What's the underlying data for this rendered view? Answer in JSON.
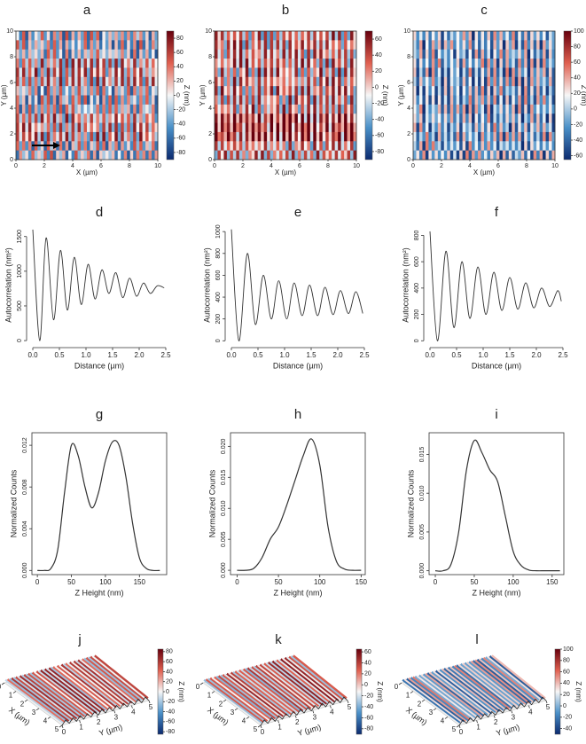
{
  "chart_data": [
    {
      "type": "heatmap",
      "label": "a",
      "xlabel": "X (µm)",
      "ylabel": "Y (µm)",
      "zlabel": "Z (nm)",
      "xlim": [
        0,
        10
      ],
      "ylim": [
        0,
        10
      ],
      "xticks": [
        0,
        2,
        4,
        6,
        8,
        10
      ],
      "yticks": [
        0,
        2,
        4,
        6,
        8,
        10
      ],
      "zlim": [
        -90,
        90
      ],
      "zticks": [
        80,
        60,
        40,
        20,
        0,
        -20,
        -40,
        -60,
        -80
      ],
      "colors": [
        "#0b2a6f",
        "#4a90c8",
        "#f7f7f7",
        "#e06050",
        "#67000d"
      ]
    },
    {
      "type": "heatmap",
      "label": "b",
      "xlabel": "X (µm)",
      "ylabel": "Y (µm)",
      "zlabel": "Z (nm)",
      "xlim": [
        0,
        10
      ],
      "ylim": [
        0,
        10
      ],
      "xticks": [
        0,
        2,
        4,
        6,
        8,
        10
      ],
      "yticks": [
        0,
        2,
        4,
        6,
        8,
        10
      ],
      "zlim": [
        -90,
        70
      ],
      "zticks": [
        60,
        40,
        20,
        0,
        -20,
        -40,
        -60,
        -80
      ],
      "colors": [
        "#0b2a6f",
        "#4a90c8",
        "#f7f7f7",
        "#e06050",
        "#67000d"
      ]
    },
    {
      "type": "heatmap",
      "label": "c",
      "xlabel": "X (µm)",
      "ylabel": "Y (µm)",
      "zlabel": "Z (nm)",
      "xlim": [
        0,
        10
      ],
      "ylim": [
        0,
        10
      ],
      "xticks": [
        0,
        2,
        4,
        6,
        8,
        10
      ],
      "yticks": [
        0,
        2,
        4,
        6,
        8,
        10
      ],
      "zlim": [
        -65,
        100
      ],
      "zticks": [
        100,
        80,
        60,
        40,
        20,
        0,
        -20,
        -40,
        -60
      ],
      "colors": [
        "#0b2a6f",
        "#4a90c8",
        "#f7f7f7",
        "#e06050",
        "#67000d"
      ]
    },
    {
      "type": "line",
      "label": "d",
      "xlabel": "Distance  (µm)",
      "ylabel": "Autocorrelation (nm²)",
      "xlim": [
        -0.05,
        2.55
      ],
      "ylim": [
        -50,
        1650
      ],
      "xticks": [
        {
          "value": 0,
          "label": "0.0"
        },
        0.5,
        {
          "value": 1,
          "label": "1.0"
        },
        1.5,
        {
          "value": 2,
          "label": "2.0"
        },
        2.5
      ],
      "yticks": [
        0,
        500,
        1000,
        1500
      ],
      "color": "#333333",
      "x": [
        0,
        0.13,
        0.25,
        0.39,
        0.52,
        0.65,
        0.78,
        0.91,
        1.04,
        1.17,
        1.3,
        1.43,
        1.56,
        1.69,
        1.82,
        1.95,
        2.08,
        2.21,
        2.34,
        2.47
      ],
      "values": [
        1600,
        0,
        1480,
        300,
        1300,
        440,
        1200,
        520,
        1100,
        600,
        1020,
        680,
        980,
        620,
        900,
        640,
        830,
        680,
        790,
        760
      ]
    },
    {
      "type": "line",
      "label": "e",
      "xlabel": "Distance  (µm)",
      "ylabel": "Autocorrelation (nm²)",
      "xlim": [
        -0.05,
        2.55
      ],
      "ylim": [
        -30,
        1050
      ],
      "xticks": [
        {
          "value": 0,
          "label": "0.0"
        },
        0.5,
        {
          "value": 1,
          "label": "1.0"
        },
        1.5,
        {
          "value": 2,
          "label": "2.0"
        },
        2.5
      ],
      "yticks": [
        0,
        200,
        400,
        600,
        800,
        1000
      ],
      "color": "#333333",
      "x": [
        0,
        0.14,
        0.3,
        0.45,
        0.6,
        0.75,
        0.89,
        1.04,
        1.18,
        1.33,
        1.47,
        1.62,
        1.76,
        1.91,
        2.05,
        2.2,
        2.34,
        2.47
      ],
      "values": [
        1020,
        0,
        800,
        150,
        600,
        200,
        550,
        200,
        530,
        230,
        510,
        230,
        490,
        240,
        460,
        250,
        450,
        250
      ]
    },
    {
      "type": "line",
      "label": "f",
      "xlabel": "Distance  (µm)",
      "ylabel": "Autocorrelation (nm²)",
      "xlim": [
        -0.05,
        2.55
      ],
      "ylim": [
        -25,
        870
      ],
      "xticks": [
        {
          "value": 0,
          "label": "0.0"
        },
        0.5,
        {
          "value": 1,
          "label": "1.0"
        },
        1.5,
        {
          "value": 2,
          "label": "2.0"
        },
        2.5
      ],
      "yticks": [
        0,
        200,
        400,
        600,
        800
      ],
      "color": "#333333",
      "x": [
        0,
        0.14,
        0.3,
        0.45,
        0.6,
        0.75,
        0.9,
        1.05,
        1.2,
        1.35,
        1.5,
        1.65,
        1.8,
        1.95,
        2.1,
        2.25,
        2.4,
        2.47
      ],
      "values": [
        830,
        0,
        680,
        100,
        600,
        170,
        560,
        200,
        520,
        230,
        480,
        240,
        440,
        250,
        400,
        260,
        380,
        300
      ]
    },
    {
      "type": "hist",
      "label": "g",
      "xlabel": "Z Height (nm)",
      "ylabel": "Normalized Counts",
      "xlim": [
        -8,
        190
      ],
      "ylim": [
        -0.0004,
        0.0132
      ],
      "xticks": [
        0,
        50,
        100,
        150
      ],
      "yticks": [
        {
          "value": 0,
          "label": "0.000"
        },
        0.004,
        0.008,
        0.012
      ],
      "color": "#333333",
      "x": [
        0,
        10,
        20,
        30,
        40,
        50,
        60,
        70,
        80,
        90,
        100,
        110,
        120,
        130,
        140,
        150,
        160,
        170,
        180
      ],
      "values": [
        0,
        0,
        0.0002,
        0.002,
        0.0075,
        0.012,
        0.011,
        0.008,
        0.006,
        0.0075,
        0.0105,
        0.0123,
        0.012,
        0.009,
        0.0045,
        0.0012,
        0.0002,
        0,
        0
      ]
    },
    {
      "type": "hist",
      "label": "h",
      "xlabel": "Z Height (nm)",
      "ylabel": "Normalized Counts",
      "xlim": [
        -8,
        155
      ],
      "ylim": [
        -0.0007,
        0.0222
      ],
      "xticks": [
        0,
        50,
        100,
        150
      ],
      "yticks": [
        {
          "value": 0,
          "label": "0.000"
        },
        0.005,
        {
          "value": 0.01,
          "label": "0.010"
        },
        0.015,
        {
          "value": 0.02,
          "label": "0.020"
        }
      ],
      "color": "#333333",
      "x": [
        0,
        10,
        20,
        30,
        40,
        50,
        60,
        70,
        80,
        90,
        100,
        110,
        120,
        130,
        140,
        150
      ],
      "values": [
        0,
        0,
        0.0003,
        0.002,
        0.005,
        0.007,
        0.0105,
        0.0145,
        0.0185,
        0.0212,
        0.017,
        0.007,
        0.0015,
        0.0002,
        0,
        0
      ]
    },
    {
      "type": "hist",
      "label": "i",
      "xlabel": "Z Height (nm)",
      "ylabel": "Normalized Counts",
      "xlim": [
        -8,
        165
      ],
      "ylim": [
        -0.0005,
        0.0178
      ],
      "xticks": [
        0,
        50,
        100,
        150
      ],
      "yticks": [
        {
          "value": 0,
          "label": "0.000"
        },
        0.005,
        {
          "value": 0.01,
          "label": "0.010"
        },
        0.015
      ],
      "color": "#333333",
      "x": [
        0,
        10,
        20,
        30,
        40,
        50,
        60,
        70,
        80,
        90,
        100,
        110,
        120,
        130,
        140,
        150,
        160
      ],
      "values": [
        0,
        0,
        0.0008,
        0.005,
        0.013,
        0.0168,
        0.0152,
        0.013,
        0.0115,
        0.007,
        0.0025,
        0.0007,
        0.0001,
        0,
        0,
        0,
        0
      ]
    },
    {
      "type": "surface",
      "label": "j",
      "xlabel": "X (µm)",
      "ylabel": "Y (µm)",
      "zlabel": "Z (nm)",
      "xlim": [
        0,
        5
      ],
      "ylim": [
        0,
        5
      ],
      "xticks": [
        0,
        1,
        2,
        3,
        4,
        5
      ],
      "yticks": [
        0,
        1,
        2,
        3,
        4,
        5
      ],
      "zlim": [
        -85,
        85
      ],
      "zticks": [
        80,
        60,
        40,
        20,
        0,
        -20,
        -40,
        -60,
        -80
      ],
      "colors": [
        "#0b2a6f",
        "#4a90c8",
        "#f7f7f7",
        "#e06050",
        "#67000d"
      ]
    },
    {
      "type": "surface",
      "label": "k",
      "xlabel": "X (µm)",
      "ylabel": "Y (µm)",
      "zlabel": "Z (nm)",
      "xlim": [
        0,
        5
      ],
      "ylim": [
        0,
        5
      ],
      "xticks": [
        0,
        1,
        2,
        3,
        4,
        5
      ],
      "yticks": [
        0,
        1,
        2,
        3,
        4,
        5
      ],
      "zlim": [
        -90,
        65
      ],
      "zticks": [
        60,
        40,
        20,
        0,
        -20,
        -40,
        -60,
        -80
      ],
      "colors": [
        "#0b2a6f",
        "#4a90c8",
        "#f7f7f7",
        "#e06050",
        "#67000d"
      ]
    },
    {
      "type": "surface",
      "label": "l",
      "xlabel": "X (µm)",
      "ylabel": "Y (µm)",
      "zlabel": "Z (nm)",
      "xlim": [
        0,
        5
      ],
      "ylim": [
        0,
        5
      ],
      "xticks": [
        0,
        1,
        2,
        3,
        4,
        5
      ],
      "yticks": [
        0,
        1,
        2,
        3,
        4,
        5
      ],
      "zlim": [
        -50,
        100
      ],
      "zticks": [
        100,
        80,
        60,
        40,
        20,
        0,
        -20,
        -40
      ],
      "colors": [
        "#0b2a6f",
        "#4a90c8",
        "#f7f7f7",
        "#e06050",
        "#67000d"
      ]
    }
  ]
}
